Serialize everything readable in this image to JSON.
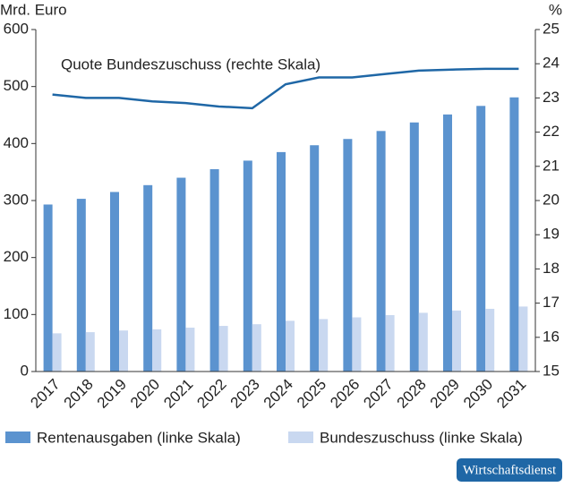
{
  "chart_data": {
    "type": "bar",
    "y_label": "Mrd. Euro",
    "y2_label": "%",
    "categories": [
      "2017",
      "2018",
      "2019",
      "2020",
      "2021",
      "2022",
      "2023",
      "2024",
      "2025",
      "2026",
      "2027",
      "2028",
      "2029",
      "2030",
      "2031"
    ],
    "series": [
      {
        "name": "Rentenausgaben (linke Skala)",
        "color": "#5b93cf",
        "values": [
          293,
          303,
          315,
          327,
          340,
          355,
          370,
          385,
          397,
          408,
          422,
          437,
          451,
          466,
          481
        ]
      },
      {
        "name": "Bundeszuschuss (linke Skala)",
        "color": "#c9d8f0",
        "values": [
          67,
          69,
          72,
          74,
          77,
          80,
          83,
          89,
          92,
          95,
          99,
          103,
          107,
          110,
          114
        ]
      },
      {
        "name": "Quote Bundeszuschuss (rechte Skala)",
        "type": "line",
        "axis": "y2",
        "color": "#1f67a6",
        "values": [
          23.1,
          23.0,
          23.0,
          22.9,
          22.85,
          22.75,
          22.7,
          23.4,
          23.6,
          23.6,
          23.7,
          23.8,
          23.83,
          23.85,
          23.85
        ]
      }
    ],
    "ylim": [
      0,
      600
    ],
    "yticks": [
      0,
      100,
      200,
      300,
      400,
      500,
      600
    ],
    "y2lim": [
      15,
      25
    ],
    "y2ticks": [
      15,
      16,
      17,
      18,
      19,
      20,
      21,
      22,
      23,
      24,
      25
    ],
    "legend": "bottom",
    "source": "Wirtschaftsdienst"
  }
}
